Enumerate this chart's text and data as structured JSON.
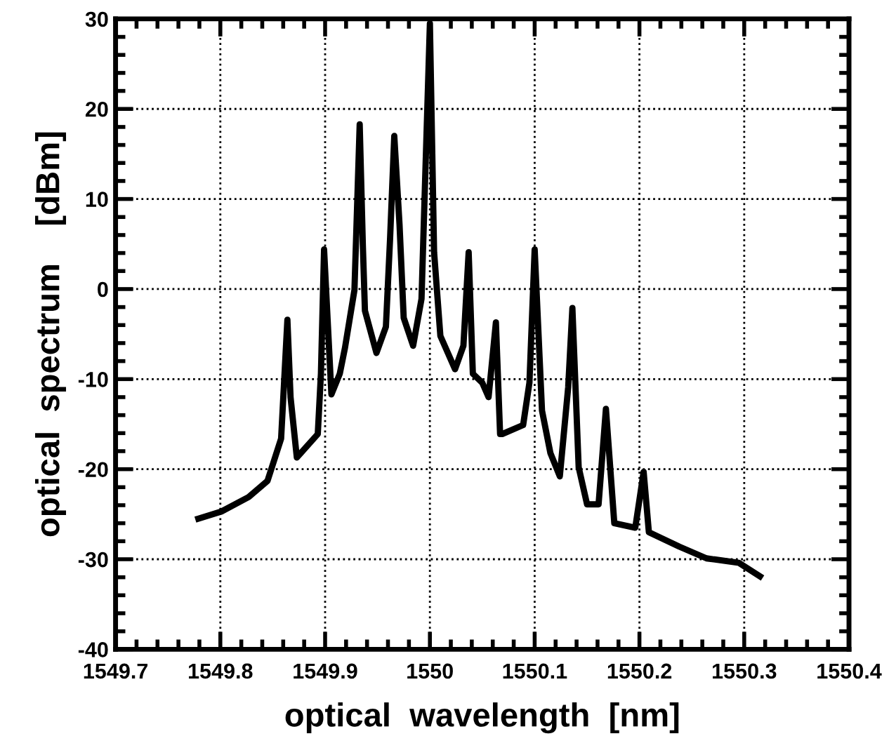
{
  "chart_data": {
    "type": "line",
    "xlabel": "optical  wavelength  [nm]",
    "ylabel": "optical  spectrum    [dBm]",
    "xlim": [
      1549.7,
      1550.4
    ],
    "xticks": [
      1549.7,
      1549.8,
      1549.9,
      1550,
      1550.1,
      1550.2,
      1550.3,
      1550.4
    ],
    "ylim": [
      -40,
      30
    ],
    "yticks": [
      -40,
      -30,
      -20,
      -10,
      0,
      10,
      20,
      30
    ],
    "grid": true,
    "line_style": "solid",
    "marker": "none",
    "series": [
      {
        "color": "#000000",
        "x": [
          1549.779,
          1549.801,
          1549.827,
          1549.845,
          1549.858,
          1549.864,
          1549.867,
          1549.873,
          1549.893,
          1549.896,
          1549.899,
          1549.906,
          1549.914,
          1549.919,
          1549.928,
          1549.933,
          1549.936,
          1549.938,
          1549.949,
          1549.958,
          1549.962,
          1549.966,
          1549.971,
          1549.975,
          1549.984,
          1549.992,
          1550.0,
          1550.004,
          1550.01,
          1550.024,
          1550.032,
          1550.037,
          1550.041,
          1550.05,
          1550.056,
          1550.063,
          1550.067,
          1550.069,
          1550.089,
          1550.095,
          1550.1,
          1550.107,
          1550.115,
          1550.124,
          1550.132,
          1550.136,
          1550.142,
          1550.15,
          1550.161,
          1550.168,
          1550.176,
          1550.196,
          1550.204,
          1550.209,
          1550.238,
          1550.264,
          1550.295,
          1550.315
        ],
        "values": [
          -25.5,
          -24.7,
          -23.1,
          -21.3,
          -16.6,
          -3.4,
          -12.0,
          -18.7,
          -16.1,
          -9.4,
          4.4,
          -11.7,
          -9.4,
          -6.5,
          -0.1,
          18.3,
          4.9,
          -2.4,
          -7.1,
          -4.2,
          5.6,
          17.0,
          7.2,
          -3.2,
          -6.3,
          -1.1,
          29.5,
          4.1,
          -5.2,
          -8.9,
          -6.3,
          4.1,
          -9.4,
          -10.4,
          -12.0,
          -3.7,
          -16.1,
          -16.1,
          -15.1,
          -10.4,
          4.4,
          -13.5,
          -18.2,
          -20.8,
          -10.9,
          -2.1,
          -19.8,
          -23.9,
          -23.9,
          -13.3,
          -26.0,
          -26.5,
          -20.3,
          -27.0,
          -28.6,
          -29.9,
          -30.4,
          -31.9
        ]
      }
    ]
  }
}
